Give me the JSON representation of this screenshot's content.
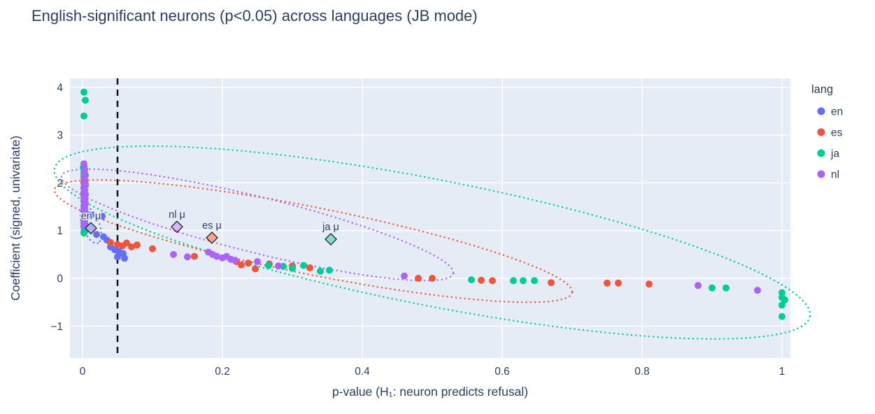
{
  "chart_data": {
    "type": "scatter",
    "title": "English-significant neurons (p<0.05) across languages (JB mode)",
    "xlabel": "p-value (H₁: neuron predicts refusal)",
    "ylabel": "Coefficient (signed, univariate)",
    "xlim": [
      -0.018,
      1.012
    ],
    "ylim": [
      -1.67,
      4.19
    ],
    "xticks": [
      0,
      0.2,
      0.4,
      0.6,
      0.8,
      1
    ],
    "xtick_labels": [
      "0",
      "0.2",
      "0.4",
      "0.6",
      "0.8",
      "1"
    ],
    "yticks": [
      -1,
      0,
      1,
      2,
      3,
      4
    ],
    "ytick_labels": [
      "−1",
      "0",
      "1",
      "2",
      "3",
      "4"
    ],
    "grid": true,
    "style": {
      "plot_bg": "#e5ecf6",
      "grid": "#ffffff",
      "text": "#2a3f5f",
      "threshold": "#111111",
      "mean_edge": "#222222"
    },
    "threshold_line": {
      "x": 0.05,
      "style": "dashed",
      "color": "#111111"
    },
    "legend": {
      "title": "lang",
      "position": "right",
      "entries": [
        {
          "label": "en",
          "color": "#636efa"
        },
        {
          "label": "es",
          "color": "#ef553b"
        },
        {
          "label": "ja",
          "color": "#00cc96"
        },
        {
          "label": "nl",
          "color": "#ab63fa"
        }
      ]
    },
    "series": [
      {
        "name": "en",
        "color": "#636efa",
        "points": [
          [
            0.002,
            2.35
          ],
          [
            0.003,
            2.28
          ],
          [
            0.002,
            2.22
          ],
          [
            0.004,
            2.16
          ],
          [
            0.002,
            2.1
          ],
          [
            0.003,
            2.05
          ],
          [
            0.002,
            2.0
          ],
          [
            0.004,
            1.95
          ],
          [
            0.002,
            1.9
          ],
          [
            0.003,
            1.85
          ],
          [
            0.002,
            1.8
          ],
          [
            0.004,
            1.76
          ],
          [
            0.002,
            1.72
          ],
          [
            0.003,
            1.66
          ],
          [
            0.002,
            1.62
          ],
          [
            0.004,
            1.56
          ],
          [
            0.002,
            1.52
          ],
          [
            0.003,
            1.46
          ],
          [
            0.002,
            1.42
          ],
          [
            0.005,
            1.36
          ],
          [
            0.012,
            1.32
          ],
          [
            0.028,
            1.3
          ],
          [
            0.002,
            1.26
          ],
          [
            0.003,
            1.22
          ],
          [
            0.002,
            1.16
          ],
          [
            0.004,
            1.12
          ],
          [
            0.002,
            1.08
          ],
          [
            0.003,
            1.02
          ],
          [
            0.002,
            0.97
          ],
          [
            0.02,
            0.92
          ],
          [
            0.03,
            0.87
          ],
          [
            0.035,
            0.8
          ],
          [
            0.04,
            0.66
          ],
          [
            0.046,
            0.6
          ],
          [
            0.052,
            0.56
          ],
          [
            0.058,
            0.52
          ],
          [
            0.05,
            0.45
          ],
          [
            0.06,
            0.42
          ]
        ]
      },
      {
        "name": "es",
        "color": "#ef553b",
        "points": [
          [
            0.003,
            2.02
          ],
          [
            0.004,
            1.0
          ],
          [
            0.04,
            0.75
          ],
          [
            0.05,
            0.71
          ],
          [
            0.057,
            0.68
          ],
          [
            0.063,
            0.74
          ],
          [
            0.07,
            0.66
          ],
          [
            0.078,
            0.7
          ],
          [
            0.1,
            0.62
          ],
          [
            0.16,
            0.46
          ],
          [
            0.22,
            0.35
          ],
          [
            0.227,
            0.28
          ],
          [
            0.237,
            0.32
          ],
          [
            0.247,
            0.2
          ],
          [
            0.267,
            0.3
          ],
          [
            0.3,
            0.26
          ],
          [
            0.325,
            0.22
          ],
          [
            0.48,
            0.0
          ],
          [
            0.5,
            0.0
          ],
          [
            0.57,
            -0.04
          ],
          [
            0.586,
            -0.05
          ],
          [
            0.67,
            -0.09
          ],
          [
            0.75,
            -0.1
          ],
          [
            0.766,
            -0.1
          ],
          [
            0.81,
            -0.12
          ]
        ]
      },
      {
        "name": "ja",
        "color": "#00cc96",
        "points": [
          [
            0.002,
            3.9
          ],
          [
            0.004,
            3.73
          ],
          [
            0.002,
            3.4
          ],
          [
            0.001,
            2.32
          ],
          [
            0.002,
            2.16
          ],
          [
            0.003,
            1.05
          ],
          [
            0.002,
            0.95
          ],
          [
            0.266,
            0.27
          ],
          [
            0.287,
            0.25
          ],
          [
            0.3,
            0.21
          ],
          [
            0.316,
            0.27
          ],
          [
            0.34,
            0.15
          ],
          [
            0.353,
            0.17
          ],
          [
            0.556,
            -0.03
          ],
          [
            0.616,
            -0.05
          ],
          [
            0.63,
            -0.05
          ],
          [
            0.646,
            -0.05
          ],
          [
            0.9,
            -0.2
          ],
          [
            0.92,
            -0.2
          ],
          [
            1.0,
            -0.3
          ],
          [
            1.0,
            -0.4
          ],
          [
            1.004,
            -0.45
          ],
          [
            1.0,
            -0.56
          ],
          [
            1.0,
            -0.8
          ]
        ]
      },
      {
        "name": "nl",
        "color": "#ab63fa",
        "points": [
          [
            0.002,
            2.4
          ],
          [
            0.003,
            2.26
          ],
          [
            0.002,
            2.12
          ],
          [
            0.004,
            1.98
          ],
          [
            0.002,
            1.88
          ],
          [
            0.003,
            1.78
          ],
          [
            0.002,
            1.68
          ],
          [
            0.004,
            1.58
          ],
          [
            0.002,
            1.48
          ],
          [
            0.003,
            1.4
          ],
          [
            0.002,
            1.3
          ],
          [
            0.003,
            1.2
          ],
          [
            0.002,
            1.12
          ],
          [
            0.13,
            0.5
          ],
          [
            0.15,
            0.45
          ],
          [
            0.18,
            0.55
          ],
          [
            0.186,
            0.5
          ],
          [
            0.192,
            0.46
          ],
          [
            0.2,
            0.43
          ],
          [
            0.206,
            0.46
          ],
          [
            0.212,
            0.4
          ],
          [
            0.218,
            0.38
          ],
          [
            0.25,
            0.35
          ],
          [
            0.28,
            0.26
          ],
          [
            0.46,
            0.05
          ],
          [
            0.88,
            -0.15
          ],
          [
            0.965,
            -0.25
          ]
        ]
      }
    ],
    "means": [
      {
        "name": "en",
        "label": "en μ",
        "x": 0.012,
        "y": 1.05,
        "fill": "#aab4f8"
      },
      {
        "name": "nl",
        "label": "nl μ",
        "x": 0.135,
        "y": 1.08,
        "fill": "#d4b8fb"
      },
      {
        "name": "es",
        "label": "es μ",
        "x": 0.185,
        "y": 0.85,
        "fill": "#f5a58f"
      },
      {
        "name": "ja",
        "label": "ja μ",
        "x": 0.355,
        "y": 0.82,
        "fill": "#7fe0c4"
      }
    ],
    "ellipses": [
      {
        "name": "ja",
        "color": "#00cc96",
        "cx": 0.5,
        "cy": 0.75,
        "ux": 0.54,
        "uy": -1.55,
        "vx": -0.0173,
        "vy": -1.295
      },
      {
        "name": "es",
        "color": "#ef553b",
        "cx": 0.33,
        "cy": 0.78,
        "ux": 0.37,
        "uy": -1.08,
        "vx": -0.0094,
        "vy": -0.69
      },
      {
        "name": "nl",
        "color": "#ab63fa",
        "cx": 0.25,
        "cy": 1.12,
        "ux": 0.28,
        "uy": -1.02,
        "vx": -0.00965,
        "vy": -0.569
      },
      {
        "name": "en",
        "color": "#636efa",
        "cx": 0.012,
        "cy": 1.12,
        "ux": 0.01,
        "uy": -0.38,
        "vx": -0.0112,
        "vy": -0.063
      }
    ]
  }
}
